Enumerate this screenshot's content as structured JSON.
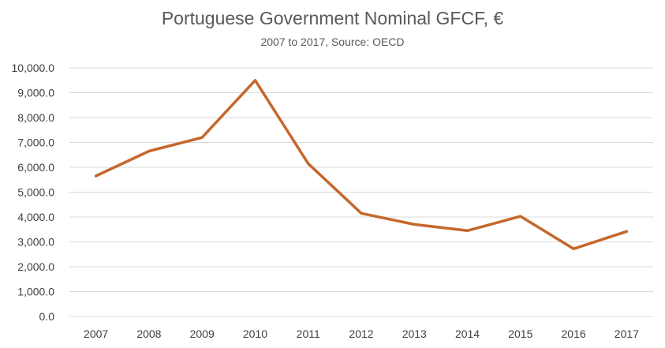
{
  "chart_data": {
    "type": "line",
    "title": "Portuguese Government Nominal GFCF, €",
    "subtitle": "2007 to 2017, Source: OECD",
    "categories": [
      "2007",
      "2008",
      "2009",
      "2010",
      "2011",
      "2012",
      "2013",
      "2014",
      "2015",
      "2016",
      "2017"
    ],
    "series": [
      {
        "values": [
          5650,
          6650,
          7200,
          9500,
          6150,
          4150,
          3700,
          3450,
          4030,
          2720,
          3420
        ],
        "color": "#C5672D"
      }
    ],
    "ylim": [
      0,
      10000
    ],
    "yticks": [
      "0.0",
      "1,000.0",
      "2,000.0",
      "3,000.0",
      "4,000.0",
      "5,000.0",
      "6,000.0",
      "7,000.0",
      "8,000.0",
      "9,000.0",
      "10,000.0"
    ],
    "xlabel": "",
    "ylabel": "",
    "grid": true,
    "legend": "none",
    "colors": {
      "line": "#C5672D",
      "grid": "#d9d9d9",
      "text": "#595959"
    }
  }
}
